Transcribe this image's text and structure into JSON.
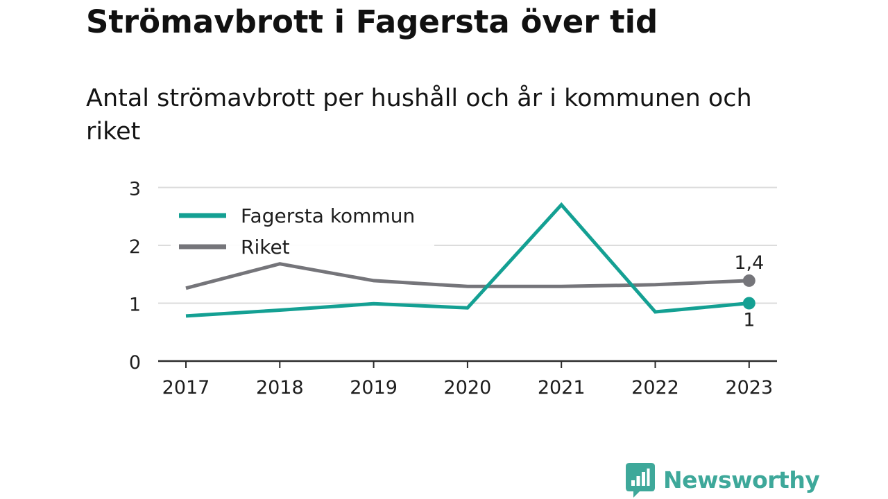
{
  "title": "Strömavbrott i Fagersta över tid",
  "subtitle": "Antal strömavbrott per hushåll och år i kommunen och riket",
  "chart_data": {
    "type": "line",
    "x": [
      "2017",
      "2018",
      "2019",
      "2020",
      "2021",
      "2022",
      "2023"
    ],
    "series": [
      {
        "name": "Fagersta kommun",
        "color": "#14a093",
        "values": [
          0.78,
          0.88,
          0.99,
          0.92,
          2.7,
          0.85,
          1.0
        ],
        "end_label": "1"
      },
      {
        "name": "Riket",
        "color": "#75757a",
        "values": [
          1.26,
          1.68,
          1.39,
          1.29,
          1.29,
          1.32,
          1.39
        ],
        "end_label": "1,4"
      }
    ],
    "y_ticks": [
      "0",
      "1",
      "2",
      "3"
    ],
    "ylim": [
      0,
      3
    ],
    "grid": true,
    "legend_position": "top-left"
  },
  "brand": {
    "name": "Newsworthy",
    "color": "#3ea89a",
    "logo_icon": "newsworthy-bars-icon"
  }
}
